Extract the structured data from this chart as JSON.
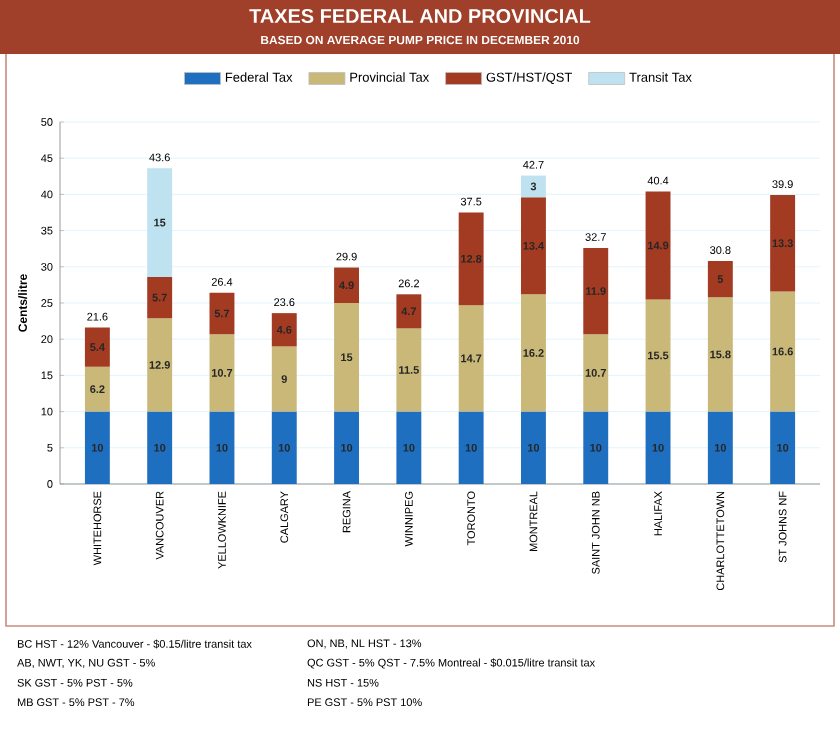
{
  "chart_data": {
    "type": "bar",
    "stacked": true,
    "title": "TAXES FEDERAL AND PROVINCIAL",
    "subtitle": "BASED ON AVERAGE PUMP PRICE IN DECEMBER 2010",
    "ylabel": "Cents/litre",
    "categories": [
      "WHITEHORSE",
      "VANCOUVER",
      "YELLOWKNIFE",
      "CALGARY",
      "REGINA",
      "WINNIPEG",
      "TORONTO",
      "MONTREAL",
      "SAINT JOHN NB",
      "HALIFAX",
      "CHARLOTTETOWN",
      "ST JOHNS NF"
    ],
    "series": [
      {
        "name": "Federal Tax",
        "color": "#1f6fc0",
        "values": [
          10,
          10,
          10,
          10,
          10,
          10,
          10,
          10,
          10,
          10,
          10,
          10
        ]
      },
      {
        "name": "Provincial Tax",
        "color": "#c9b877",
        "values": [
          6.2,
          12.9,
          10.7,
          9,
          15,
          11.5,
          14.7,
          16.2,
          10.7,
          15.5,
          15.8,
          16.6
        ]
      },
      {
        "name": "GST/HST/QST",
        "color": "#a33b22",
        "values": [
          5.4,
          5.7,
          5.7,
          4.6,
          4.9,
          4.7,
          12.8,
          13.4,
          11.9,
          14.9,
          5,
          13.3
        ]
      },
      {
        "name": "Transit Tax",
        "color": "#bfe2f0",
        "values": [
          null,
          15,
          null,
          null,
          null,
          null,
          null,
          3,
          null,
          null,
          null,
          null
        ]
      }
    ],
    "totals": [
      "21.6",
      "43.6",
      "26.4",
      "23.6",
      "29.9",
      "26.2",
      "37.5",
      "42.7",
      "32.7",
      "40.4",
      "30.8",
      "39.9"
    ],
    "data_labels": true,
    "ylim": [
      0,
      50
    ],
    "yticks": [
      0,
      5,
      10,
      15,
      20,
      25,
      30,
      35,
      40,
      45,
      50
    ],
    "grid": "y",
    "legend": "top",
    "annotations": [
      "BC HST - 12% Vancouver - $0.15/litre transit tax",
      "AB, NWT, YK, NU GST - 5%",
      "SK GST - 5% PST - 5%",
      "MB GST - 5% PST - 7%",
      "ON, NB, NL HST - 13%",
      "QC GST - 5% QST - 7.5% Montreal - $0.015/litre transit tax",
      "NS HST - 15%",
      "PE GST - 5% PST 10%"
    ]
  }
}
